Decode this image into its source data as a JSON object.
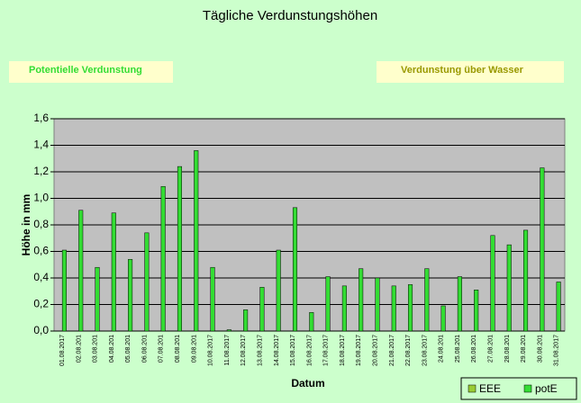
{
  "chart_data": {
    "type": "bar",
    "title": "Tägliche Verdunstungshöhen",
    "annotations": [
      "Potentielle Verdunstung",
      "Verdunstung über Wasser"
    ],
    "x_label": "Datum",
    "y_label": "Höhe in mm",
    "categories": [
      "01.08.2017",
      "02.08.201",
      "03.08.201",
      "04.08.201",
      "05.08.201",
      "06.08.201",
      "07.08.201",
      "08.08.201",
      "09.08.201",
      "10.08.2017",
      "11.08.2017",
      "12.08.2017",
      "13.08.2017",
      "14.08.2017",
      "15.08.2017",
      "16.08.2017",
      "17.08.2017",
      "18.08.2017",
      "19.08.2017",
      "20.08.2017",
      "21.08.2017",
      "22.08.2017",
      "23.08.2017",
      "24.08.201",
      "25.08.201",
      "26.08.201",
      "27.08.201",
      "28.08.201",
      "29.08.201",
      "30.08.201",
      "31.08.2017"
    ],
    "series": [
      {
        "name": "EEE",
        "color": "#99cc33",
        "values": [
          null,
          null,
          null,
          null,
          null,
          null,
          null,
          null,
          null,
          null,
          null,
          null,
          null,
          null,
          null,
          null,
          null,
          null,
          null,
          null,
          null,
          null,
          null,
          null,
          null,
          null,
          null,
          null,
          null,
          null,
          null
        ]
      },
      {
        "name": "potE",
        "color": "#33dd33",
        "values": [
          0.61,
          0.91,
          0.48,
          0.89,
          0.54,
          0.74,
          1.09,
          1.24,
          1.36,
          0.48,
          0.01,
          0.16,
          0.33,
          0.61,
          0.93,
          0.14,
          0.41,
          0.34,
          0.47,
          0.4,
          0.34,
          0.35,
          0.47,
          0.19,
          0.41,
          0.31,
          0.72,
          0.65,
          0.76,
          1.23,
          0.37
        ]
      }
    ],
    "ylim": [
      0,
      1.6
    ],
    "yticks": [
      {
        "value": 0,
        "label": "0,0"
      },
      {
        "value": 0.2,
        "label": "0,2"
      },
      {
        "value": 0.4,
        "label": "0,4"
      },
      {
        "value": 0.6,
        "label": "0,6"
      },
      {
        "value": 0.8,
        "label": "0,8"
      },
      {
        "value": 1,
        "label": "1,0"
      },
      {
        "value": 1.2,
        "label": "1,2"
      },
      {
        "value": 1.4,
        "label": "1,4"
      },
      {
        "value": 1.6,
        "label": "1,6"
      }
    ],
    "grid": true,
    "legend": "bottom-right"
  }
}
